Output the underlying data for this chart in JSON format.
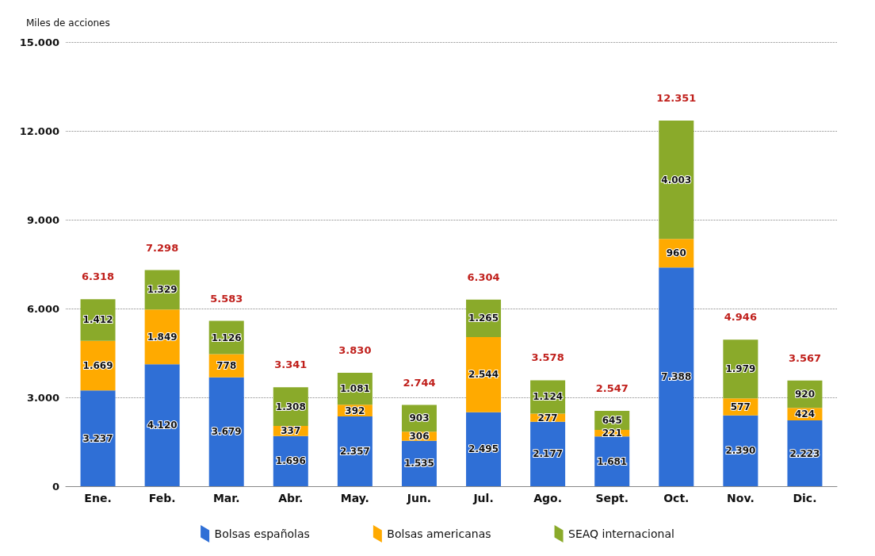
{
  "chart_data": {
    "type": "bar",
    "stacked": true,
    "ylabel": "Miles de acciones",
    "categories": [
      "Ene.",
      "Feb.",
      "Mar.",
      "Abr.",
      "May.",
      "Jun.",
      "Jul.",
      "Ago.",
      "Sept.",
      "Oct.",
      "Nov.",
      "Dic."
    ],
    "series": [
      {
        "name": "Bolsas españolas",
        "color": "#2f6fd6",
        "values": [
          3237,
          4120,
          3679,
          1696,
          2357,
          1535,
          2495,
          2177,
          1681,
          7388,
          2390,
          2223
        ],
        "value_labels": [
          "3.237",
          "4.120",
          "3.679",
          "1.696",
          "2.357",
          "1.535",
          "2.495",
          "2.177",
          "1.681",
          "7.388",
          "2.390",
          "2.223"
        ]
      },
      {
        "name": "Bolsas americanas",
        "color": "#ffaa00",
        "values": [
          1669,
          1849,
          778,
          337,
          392,
          306,
          2544,
          277,
          221,
          960,
          577,
          424
        ],
        "value_labels": [
          "1.669",
          "1.849",
          "778",
          "337",
          "392",
          "306",
          "2.544",
          "277",
          "221",
          "960",
          "577",
          "424"
        ]
      },
      {
        "name": "SEAQ internacional",
        "color": "#8aaa2a",
        "values": [
          1412,
          1329,
          1126,
          1308,
          1081,
          903,
          1265,
          1124,
          645,
          4003,
          1979,
          920
        ],
        "value_labels": [
          "1.412",
          "1.329",
          "1.126",
          "1.308",
          "1.081",
          "903",
          "1.265",
          "1.124",
          "645",
          "4.003",
          "1.979",
          "920"
        ]
      }
    ],
    "totals": [
      "6.318",
      "7.298",
      "5.583",
      "3.341",
      "3.830",
      "2.744",
      "6.304",
      "3.578",
      "2.547",
      "12.351",
      "4.946",
      "3.567"
    ],
    "ylim": [
      0,
      15000
    ],
    "yticks": [
      {
        "value": 0,
        "label": "0"
      },
      {
        "value": 3000,
        "label": "3.000"
      },
      {
        "value": 6000,
        "label": "6.000"
      },
      {
        "value": 9000,
        "label": "9.000"
      },
      {
        "value": 12000,
        "label": "12.000"
      },
      {
        "value": 15000,
        "label": "15.000"
      }
    ],
    "grid": "y",
    "legend": "bottom"
  }
}
